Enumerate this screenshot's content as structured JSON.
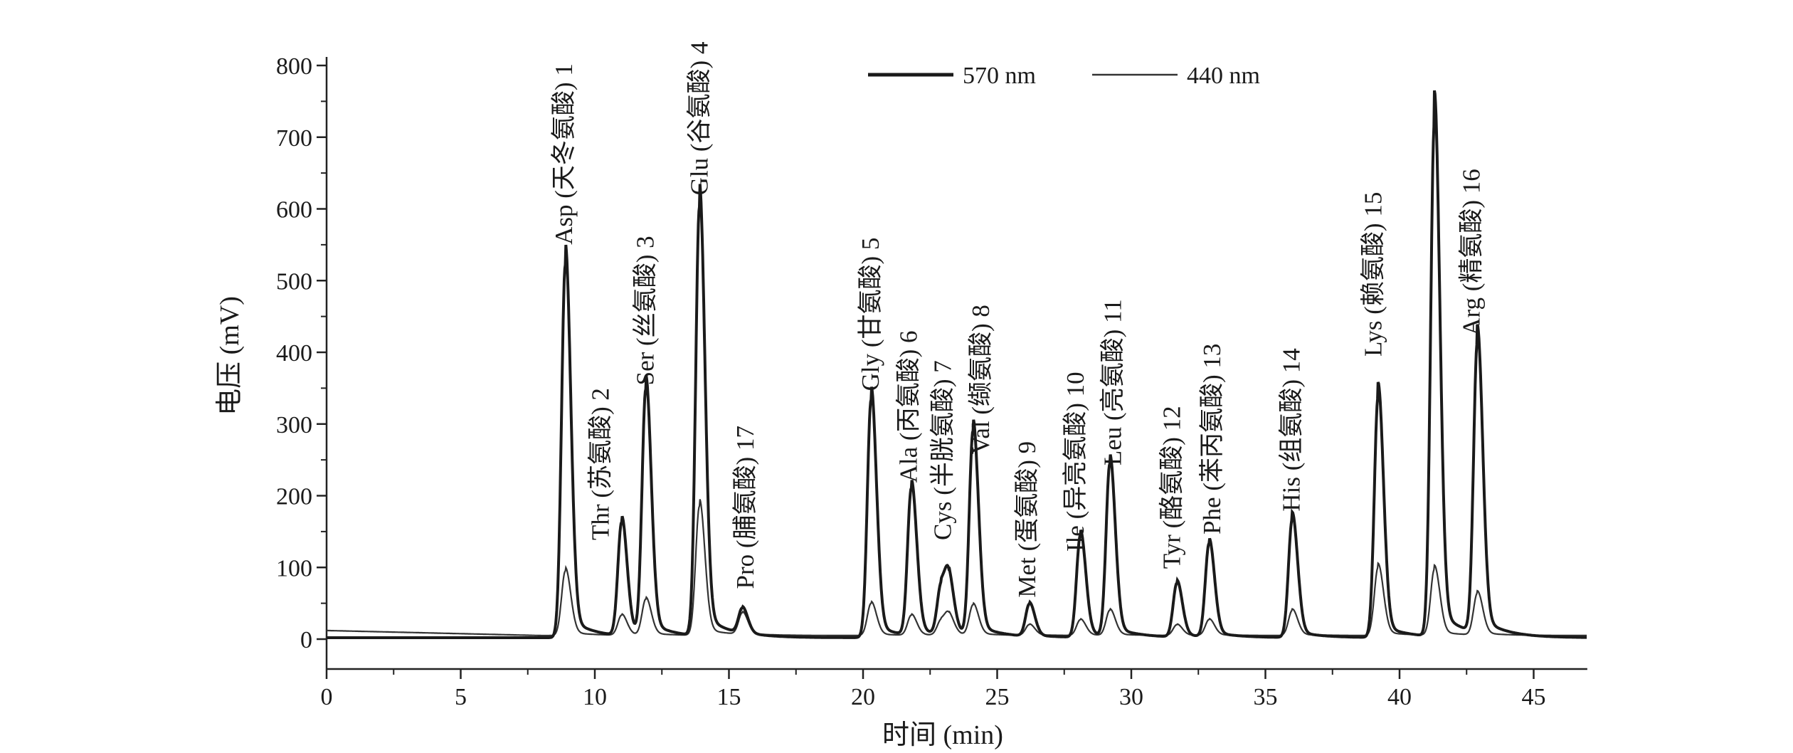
{
  "chart_data": {
    "type": "line",
    "title": "",
    "xlabel": "时间 (min)",
    "ylabel": "电压 (mV)",
    "xlim": [
      0,
      47
    ],
    "ylim": [
      -40,
      800
    ],
    "x_ticks": [
      0,
      5,
      10,
      15,
      20,
      25,
      30,
      35,
      40,
      45
    ],
    "y_ticks": [
      0,
      100,
      200,
      300,
      400,
      500,
      600,
      700,
      800
    ],
    "grid": false,
    "legend": {
      "placement": "top-center",
      "entries": [
        "570 nm",
        "440 nm"
      ]
    },
    "series": [
      {
        "name": "570 nm",
        "color": "#1a1a1a",
        "baseline": 2
      },
      {
        "name": "440 nm",
        "color": "#333333",
        "baseline_start": 12,
        "baseline": 5
      }
    ],
    "peaks": [
      {
        "t": 8.9,
        "h570": 520,
        "h440": 90
      },
      {
        "t": 11.0,
        "h570": 158,
        "h440": 28
      },
      {
        "t": 11.9,
        "h570": 342,
        "h440": 50
      },
      {
        "t": 13.9,
        "h570": 598,
        "h440": 180
      },
      {
        "t": 15.5,
        "h570": 35,
        "h440": 30
      },
      {
        "t": 20.3,
        "h570": 332,
        "h440": 45
      },
      {
        "t": 21.8,
        "h570": 205,
        "h440": 28
      },
      {
        "t": 22.9,
        "h570": 66,
        "h440": 20
      },
      {
        "t": 23.2,
        "h570": 68,
        "h440": 25
      },
      {
        "t": 24.1,
        "h570": 285,
        "h440": 42
      },
      {
        "t": 26.2,
        "h570": 45,
        "h440": 15
      },
      {
        "t": 28.1,
        "h570": 142,
        "h440": 22
      },
      {
        "t": 29.2,
        "h570": 240,
        "h440": 35
      },
      {
        "t": 31.7,
        "h570": 75,
        "h440": 15
      },
      {
        "t": 32.9,
        "h570": 130,
        "h440": 22
      },
      {
        "t": 36.0,
        "h570": 165,
        "h440": 35
      },
      {
        "t": 39.2,
        "h570": 336,
        "h440": 95
      },
      {
        "t": 41.3,
        "h570": 718,
        "h440": 92
      },
      {
        "t": 42.9,
        "h570": 405,
        "h440": 58
      }
    ],
    "annotations": [
      {
        "text": "Asp (天冬氨酸) 1",
        "t": 8.83,
        "mv": 550
      },
      {
        "text": "Thr (苏氨酸) 2",
        "t": 10.2,
        "mv": 138
      },
      {
        "text": "Ser (丝氨酸) 3",
        "t": 11.87,
        "mv": 354
      },
      {
        "text": "Glu (谷氨酸) 4",
        "t": 13.88,
        "mv": 619
      },
      {
        "text": "Pro (脯氨酸) 17",
        "t": 15.6,
        "mv": 70
      },
      {
        "text": "Gly (甘氨酸) 5",
        "t": 20.27,
        "mv": 346
      },
      {
        "text": "Ala (丙氨酸) 6",
        "t": 21.68,
        "mv": 218
      },
      {
        "text": "Cys (半胱氨酸) 7",
        "t": 22.96,
        "mv": 138
      },
      {
        "text": "Val (缬氨酸) 8",
        "t": 24.38,
        "mv": 258
      },
      {
        "text": "Met (蛋氨酸) 9",
        "t": 26.1,
        "mv": 58
      },
      {
        "text": "Ile (异亮氨酸) 10",
        "t": 27.9,
        "mv": 122
      },
      {
        "text": "Leu (亮氨酸) 11",
        "t": 29.3,
        "mv": 242
      },
      {
        "text": "Tyr (酪氨酸) 12",
        "t": 31.5,
        "mv": 98
      },
      {
        "text": "Phe (苯丙氨酸) 13",
        "t": 33.0,
        "mv": 146
      },
      {
        "text": "His (组氨酸) 14",
        "t": 35.95,
        "mv": 178
      },
      {
        "text": "Lys (赖氨酸) 15",
        "t": 39.0,
        "mv": 394
      },
      {
        "text": "Arg (精氨酸) 16",
        "t": 42.67,
        "mv": 423
      }
    ]
  }
}
